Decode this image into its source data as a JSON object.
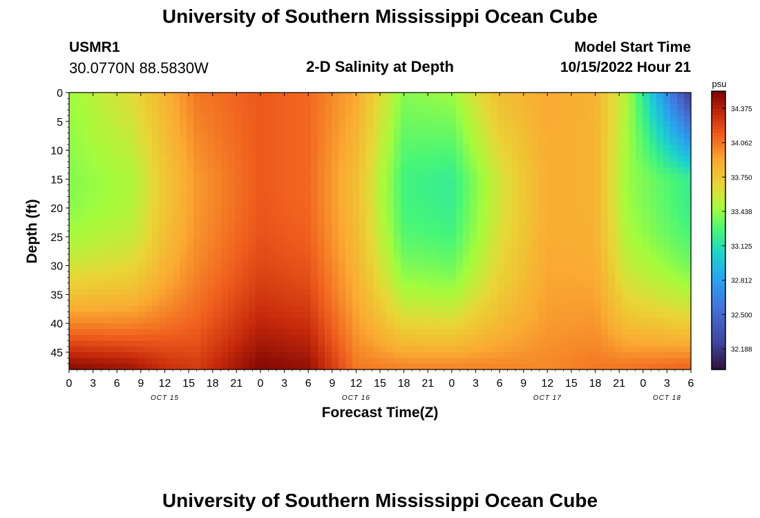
{
  "header": {
    "title": "University of Southern Mississippi Ocean Cube",
    "station_id": "USMR1",
    "station_coords": "30.0770N  88.5830W",
    "subtitle": "2-D Salinity at Depth",
    "model_start_label": "Model Start Time",
    "model_start_value": "10/15/2022 Hour 21"
  },
  "footer": {
    "title": "University of Southern Mississippi Ocean Cube"
  },
  "chart_data": {
    "type": "heatmap",
    "title": "2-D Salinity at Depth",
    "xlabel": "Forecast Time(Z)",
    "ylabel": "Depth (ft)",
    "x_tick_labels": [
      "0",
      "3",
      "6",
      "9",
      "12",
      "15",
      "18",
      "21",
      "0",
      "3",
      "6",
      "9",
      "12",
      "15",
      "18",
      "21",
      "0",
      "3",
      "6",
      "9",
      "12",
      "15",
      "18",
      "21",
      "0",
      "3",
      "6"
    ],
    "x_range_hours": [
      0,
      78
    ],
    "date_labels": [
      {
        "label": "OCT 15",
        "hour": 12
      },
      {
        "label": "OCT 16",
        "hour": 36
      },
      {
        "label": "OCT 17",
        "hour": 60
      },
      {
        "label": "OCT 18",
        "hour": 75
      }
    ],
    "y_ticks": [
      0,
      5,
      10,
      15,
      20,
      25,
      30,
      35,
      40,
      45
    ],
    "ylim": [
      48,
      0
    ],
    "y_inverted": true,
    "colorbar": {
      "unit": "psu",
      "min": 32.0,
      "max": 34.531,
      "tick_labels": [
        "34.375",
        "34.062",
        "33.750",
        "33.438",
        "33.125",
        "32.812",
        "32.500",
        "32.188"
      ],
      "tick_values": [
        34.375,
        34.062,
        33.75,
        33.438,
        33.125,
        32.812,
        32.5,
        32.188
      ]
    },
    "salinity_summary": [
      {
        "hour": 0,
        "surface": 33.45,
        "mid_15ft": 33.4,
        "deep_45ft": 34.47
      },
      {
        "hour": 8,
        "surface": 33.65,
        "mid_15ft": 33.5,
        "deep_45ft": 34.4
      },
      {
        "hour": 12,
        "surface": 33.85,
        "mid_15ft": 33.75,
        "deep_45ft": 34.3
      },
      {
        "hour": 16,
        "surface": 34.05,
        "mid_15ft": 33.95,
        "deep_45ft": 34.25
      },
      {
        "hour": 24,
        "surface": 34.15,
        "mid_15ft": 34.15,
        "deep_45ft": 34.5
      },
      {
        "hour": 30,
        "surface": 34.1,
        "mid_15ft": 34.1,
        "deep_45ft": 34.45
      },
      {
        "hour": 36,
        "surface": 33.9,
        "mid_15ft": 33.8,
        "deep_45ft": 34.05
      },
      {
        "hour": 42,
        "surface": 33.4,
        "mid_15ft": 33.25,
        "deep_45ft": 34.0
      },
      {
        "hour": 48,
        "surface": 33.45,
        "mid_15ft": 33.2,
        "deep_45ft": 34.0
      },
      {
        "hour": 54,
        "surface": 33.8,
        "mid_15ft": 33.6,
        "deep_45ft": 34.0
      },
      {
        "hour": 60,
        "surface": 33.9,
        "mid_15ft": 33.88,
        "deep_45ft": 34.0
      },
      {
        "hour": 66,
        "surface": 33.85,
        "mid_15ft": 33.85,
        "deep_45ft": 34.05
      },
      {
        "hour": 70,
        "surface": 33.5,
        "mid_15ft": 33.45,
        "deep_45ft": 34.05
      },
      {
        "hour": 78,
        "surface": 32.2,
        "mid_15ft": 33.2,
        "deep_45ft": 34.1
      }
    ]
  }
}
